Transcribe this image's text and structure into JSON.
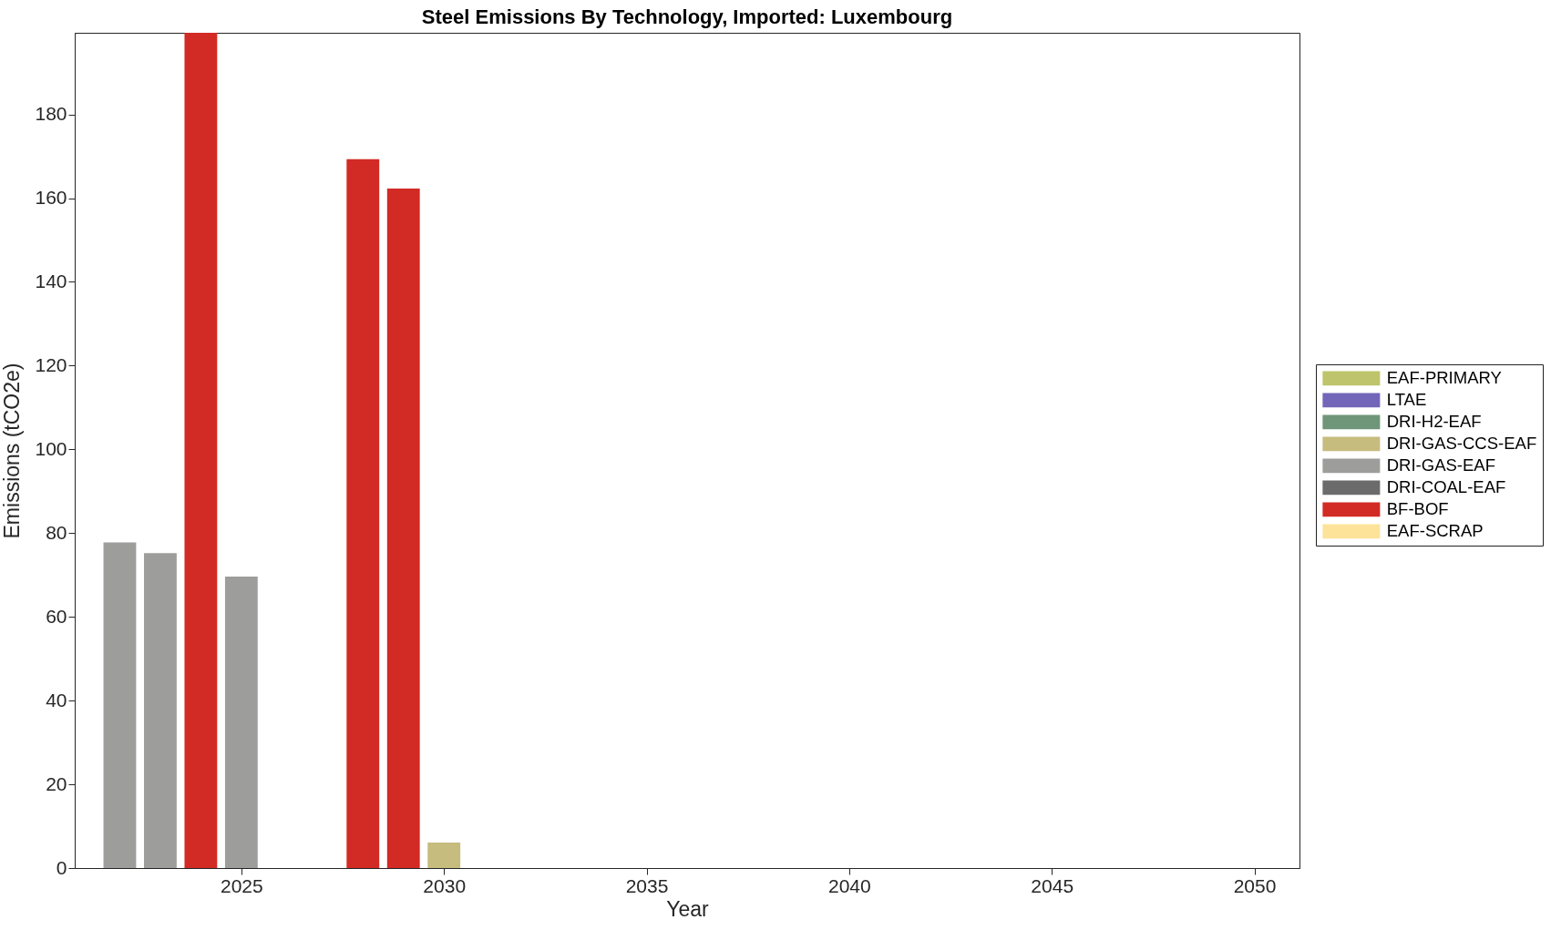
{
  "chart_data": {
    "type": "bar",
    "title": "Steel Emissions By Technology, Imported: Luxembourg",
    "xlabel": "Year",
    "ylabel": "Emissions (tCO2e)",
    "x": [
      2022,
      2023,
      2024,
      2025,
      2028,
      2029,
      2030
    ],
    "stacked": true,
    "series": [
      {
        "name": "EAF-SCRAP",
        "color": "#fde39a",
        "values": [
          null,
          null,
          null,
          null,
          null,
          null,
          null
        ]
      },
      {
        "name": "BF-BOF",
        "color": "#d22a24",
        "values": [
          null,
          null,
          199.5,
          null,
          169.3,
          162.3,
          null
        ]
      },
      {
        "name": "DRI-COAL-EAF",
        "color": "#6b6b6b",
        "values": [
          null,
          null,
          null,
          null,
          null,
          null,
          null
        ]
      },
      {
        "name": "DRI-GAS-EAF",
        "color": "#9d9d9b",
        "values": [
          77.8,
          75.2,
          null,
          69.6,
          null,
          null,
          null
        ]
      },
      {
        "name": "DRI-GAS-CCS-EAF",
        "color": "#c6bc7e",
        "values": [
          null,
          null,
          null,
          null,
          null,
          null,
          6.1
        ]
      },
      {
        "name": "DRI-H2-EAF",
        "color": "#6f9679",
        "values": [
          null,
          null,
          null,
          null,
          null,
          null,
          null
        ]
      },
      {
        "name": "LTAE",
        "color": "#7266b8",
        "values": [
          null,
          null,
          null,
          null,
          null,
          null,
          null
        ]
      },
      {
        "name": "EAF-PRIMARY",
        "color": "#bec46b",
        "values": [
          null,
          null,
          null,
          null,
          null,
          null,
          null
        ]
      }
    ],
    "xlim": [
      2021,
      2051
    ],
    "xticks": [
      2025,
      2030,
      2035,
      2040,
      2045,
      2050
    ],
    "ylim": [
      0,
      199.5
    ],
    "yticks": [
      0,
      20,
      40,
      60,
      80,
      100,
      120,
      140,
      160,
      180
    ],
    "grid": false,
    "legend": "right"
  }
}
